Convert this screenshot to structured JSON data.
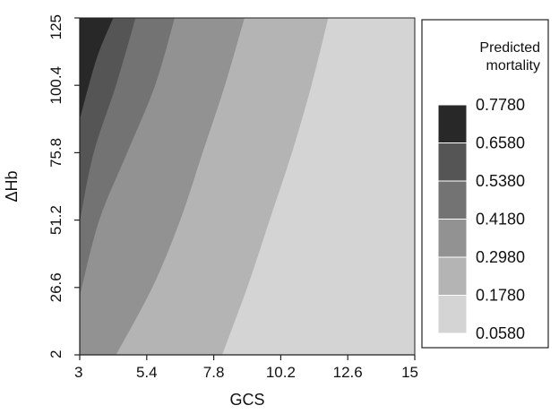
{
  "chart_data": {
    "type": "heatmap",
    "subtype": "filled-contour",
    "title": "",
    "xlabel": "GCS",
    "ylabel": "ΔHb",
    "xlim": [
      3,
      15
    ],
    "ylim": [
      2,
      125
    ],
    "x_ticks": [
      "3",
      "5.4",
      "7.8",
      "10.2",
      "12.6",
      "15"
    ],
    "y_ticks": [
      "2",
      "26.6",
      "51.2",
      "75.8",
      "100.4",
      "125"
    ],
    "grid": false,
    "legend": {
      "title": "Predicted mortality",
      "title_lines": [
        "Predicted",
        "mortality"
      ],
      "placement": "right",
      "levels": [
        "0.7780",
        "0.6580",
        "0.5380",
        "0.4180",
        "0.2980",
        "0.1780",
        "0.0580"
      ]
    },
    "bands": [
      {
        "range": [
          0.058,
          0.178
        ],
        "color": "#d4d4d4"
      },
      {
        "range": [
          0.178,
          0.298
        ],
        "color": "#b4b4b4"
      },
      {
        "range": [
          0.298,
          0.418
        ],
        "color": "#929292"
      },
      {
        "range": [
          0.418,
          0.538
        ],
        "color": "#737373"
      },
      {
        "range": [
          0.538,
          0.658
        ],
        "color": "#555555"
      },
      {
        "range": [
          0.658,
          0.778
        ],
        "color": "#282828"
      }
    ],
    "contours": [
      {
        "level": 0.178,
        "points": [
          [
            8.1,
            2
          ],
          [
            9.0,
            26.6
          ],
          [
            9.8,
            51.2
          ],
          [
            10.6,
            75.8
          ],
          [
            11.3,
            100.4
          ],
          [
            11.9,
            125
          ]
        ]
      },
      {
        "level": 0.298,
        "points": [
          [
            4.3,
            2
          ],
          [
            5.6,
            26.6
          ],
          [
            6.6,
            51.2
          ],
          [
            7.4,
            75.8
          ],
          [
            8.2,
            100.4
          ],
          [
            8.9,
            125
          ]
        ]
      },
      {
        "level": 0.418,
        "points": [
          [
            3.0,
            23.5
          ],
          [
            3.7,
            51.2
          ],
          [
            4.7,
            75.8
          ],
          [
            5.7,
            100.4
          ],
          [
            6.4,
            125
          ]
        ]
      },
      {
        "level": 0.538,
        "points": [
          [
            3.0,
            50.5
          ],
          [
            3.5,
            75.8
          ],
          [
            4.3,
            100.4
          ],
          [
            5.0,
            125
          ]
        ]
      },
      {
        "level": 0.658,
        "points": [
          [
            3.0,
            88
          ],
          [
            3.6,
            110
          ],
          [
            4.2,
            125
          ]
        ]
      }
    ]
  }
}
